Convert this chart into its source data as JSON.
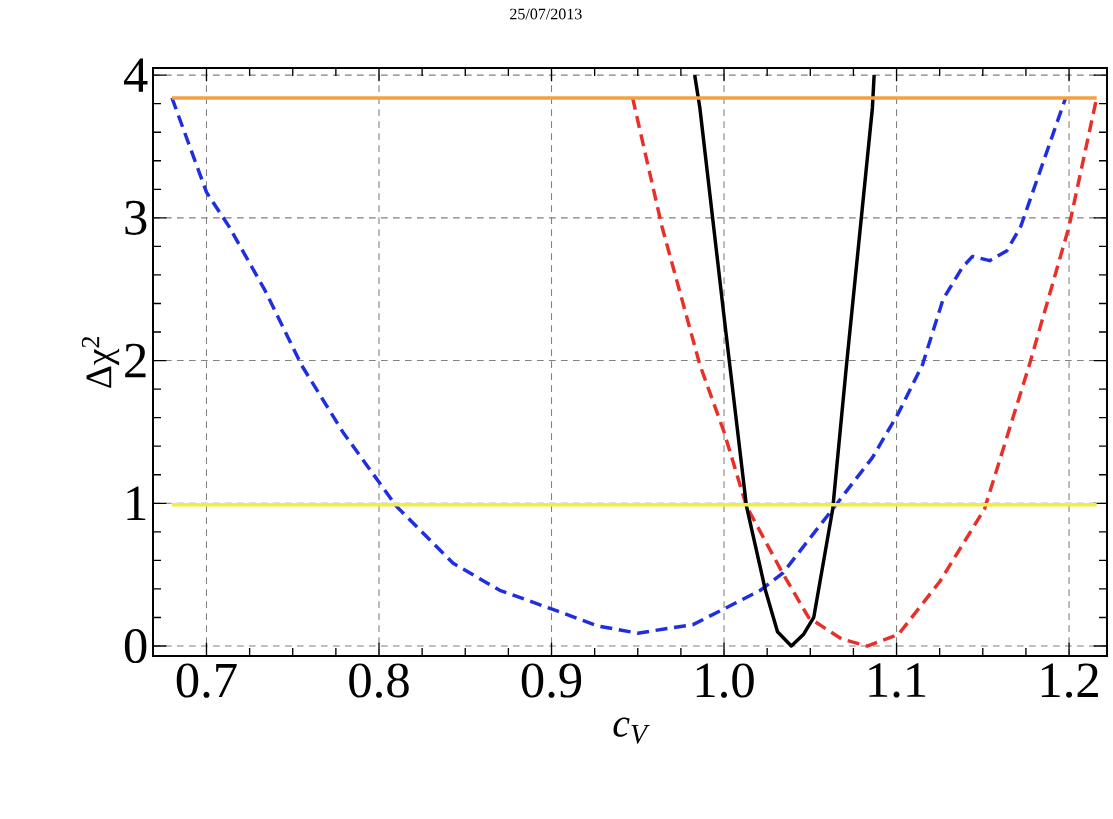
{
  "chart_data": {
    "type": "line",
    "title": "25/07/2013",
    "xlabel": "c$_{V}$",
    "ylabel": "Δχ$^{2}$",
    "xlim": [
      0.669,
      1.222
    ],
    "ylim": [
      -0.07,
      4.05
    ],
    "xticks": [
      0.7,
      0.8,
      0.9,
      {
        "value": 1.0,
        "label": "1.0"
      },
      1.1,
      1.2
    ],
    "yticks": [
      0,
      1,
      2,
      3,
      4
    ],
    "grid": true,
    "legend": false,
    "marker": "none",
    "series": [
      {
        "color": "#1f2fe0",
        "line_style": "dashed",
        "x": [
          0.68,
          0.7,
          0.713,
          0.734,
          0.755,
          0.779,
          0.81,
          0.843,
          0.87,
          0.9,
          0.927,
          0.95,
          0.982,
          1.0,
          1.021,
          1.034,
          1.063,
          1.086,
          1.101,
          1.115,
          1.127,
          1.138,
          1.144,
          1.154,
          1.164,
          1.172,
          1.198
        ],
        "values": [
          3.84,
          3.18,
          2.94,
          2.49,
          1.97,
          1.5,
          0.98,
          0.58,
          0.39,
          0.26,
          0.14,
          0.09,
          0.15,
          0.26,
          0.39,
          0.51,
          0.96,
          1.32,
          1.63,
          1.97,
          2.43,
          2.65,
          2.73,
          2.7,
          2.77,
          2.94,
          3.84
        ]
      },
      {
        "color": "#e8302a",
        "line_style": "dashed",
        "x": [
          0.947,
          0.964,
          0.986,
          1.0,
          1.013,
          1.034,
          1.049,
          1.068,
          1.083,
          1.101,
          1.125,
          1.151,
          1.177,
          1.2,
          1.216
        ],
        "values": [
          3.84,
          2.94,
          1.97,
          1.5,
          0.98,
          0.51,
          0.2,
          0.05,
          0.0,
          0.08,
          0.45,
          0.96,
          1.97,
          2.94,
          3.84
        ]
      },
      {
        "color": "#000000",
        "line_style": "solid",
        "x": [
          0.983,
          0.986,
          1.0,
          1.013,
          1.024,
          1.031,
          1.039,
          1.046,
          1.052,
          1.063,
          1.071,
          1.086,
          1.087
        ],
        "values": [
          4.0,
          3.77,
          2.31,
          0.98,
          0.39,
          0.1,
          0.0,
          0.08,
          0.2,
          0.96,
          1.97,
          3.77,
          4.0
        ]
      },
      {
        "color": "#f5a040",
        "line_style": "solid",
        "x": [
          0.68,
          1.216
        ],
        "values": [
          3.84,
          3.84
        ]
      },
      {
        "color": "#f2ec3c",
        "line_style": "solid",
        "x": [
          0.68,
          1.216
        ],
        "values": [
          0.99,
          0.99
        ]
      }
    ]
  }
}
